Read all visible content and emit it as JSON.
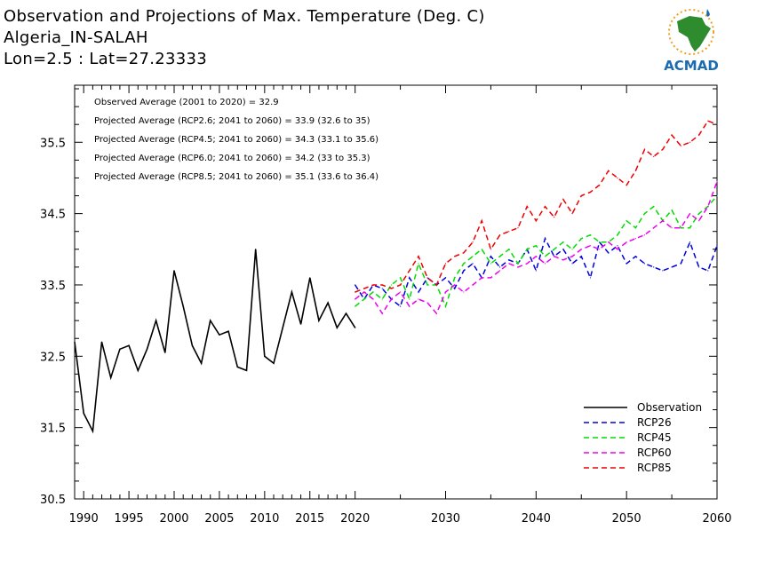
{
  "header": {
    "title_line1": "Observation and Projections of Max. Temperature (Deg. C)",
    "title_line2": "Algeria_IN-SALAH",
    "title_line3": "Lon=2.5 : Lat=27.23333"
  },
  "logo": {
    "text": "ACMAD",
    "icon": "africa-map-logo-icon",
    "color_main": "#1a6bb0",
    "color_accent": "#f0a020",
    "color_land": "#2e8b2e"
  },
  "stats": [
    "Observed Average (2001 to 2020) = 32.9",
    "Projected Average (RCP2.6; 2041 to 2060) = 33.9 (32.6 to 35)",
    "Projected Average (RCP4.5; 2041 to 2060) = 34.3 (33.1 to 35.6)",
    "Projected Average (RCP6.0; 2041 to 2060) = 34.2 (33 to 35.3)",
    "Projected Average (RCP8.5; 2041 to 2060) = 35.1 (33.6 to 36.4)"
  ],
  "chart_data": {
    "type": "line",
    "xlim": [
      1989,
      2060
    ],
    "ylim": [
      30.5,
      36.3
    ],
    "x_ticks": [
      1990,
      1995,
      2000,
      2005,
      2010,
      2015,
      2020,
      2030,
      2040,
      2050,
      2060
    ],
    "y_ticks": [
      30.5,
      31.5,
      32.5,
      33.5,
      34.5,
      35.5
    ],
    "grid": false,
    "legend_position": "bottom-right",
    "series": [
      {
        "name": "Observation",
        "color": "#000000",
        "dash": "solid",
        "x": [
          1989,
          1990,
          1991,
          1992,
          1993,
          1994,
          1995,
          1996,
          1997,
          1998,
          1999,
          2000,
          2001,
          2002,
          2003,
          2004,
          2005,
          2006,
          2007,
          2008,
          2009,
          2010,
          2011,
          2012,
          2013,
          2014,
          2015,
          2016,
          2017,
          2018,
          2019,
          2020
        ],
        "values": [
          32.7,
          31.7,
          31.45,
          32.7,
          32.2,
          32.6,
          32.65,
          32.3,
          32.6,
          33.0,
          32.55,
          33.7,
          33.2,
          32.65,
          32.4,
          33.0,
          32.8,
          32.85,
          32.35,
          32.3,
          34.0,
          32.5,
          32.4,
          32.9,
          33.4,
          32.95,
          33.6,
          33.0,
          33.25,
          32.9,
          33.1,
          32.9
        ]
      },
      {
        "name": "RCP26",
        "color": "#0000dd",
        "dash": "dashed",
        "x": [
          2020,
          2021,
          2022,
          2023,
          2024,
          2025,
          2026,
          2027,
          2028,
          2029,
          2030,
          2031,
          2032,
          2033,
          2034,
          2035,
          2036,
          2037,
          2038,
          2039,
          2040,
          2041,
          2042,
          2043,
          2044,
          2045,
          2046,
          2047,
          2048,
          2049,
          2050,
          2051,
          2052,
          2053,
          2054,
          2055,
          2056,
          2057,
          2058,
          2059,
          2060
        ],
        "values": [
          33.5,
          33.3,
          33.5,
          33.45,
          33.3,
          33.2,
          33.6,
          33.4,
          33.6,
          33.5,
          33.6,
          33.45,
          33.7,
          33.8,
          33.6,
          33.9,
          33.75,
          33.85,
          33.8,
          34.0,
          33.7,
          34.15,
          33.9,
          34.0,
          33.8,
          33.9,
          33.6,
          34.1,
          33.95,
          34.05,
          33.8,
          33.9,
          33.8,
          33.75,
          33.7,
          33.75,
          33.8,
          34.1,
          33.75,
          33.7,
          34.05
        ]
      },
      {
        "name": "RCP45",
        "color": "#00dd00",
        "dash": "dashed",
        "x": [
          2020,
          2021,
          2022,
          2023,
          2024,
          2025,
          2026,
          2027,
          2028,
          2029,
          2030,
          2031,
          2032,
          2033,
          2034,
          2035,
          2036,
          2037,
          2038,
          2039,
          2040,
          2041,
          2042,
          2043,
          2044,
          2045,
          2046,
          2047,
          2048,
          2049,
          2050,
          2051,
          2052,
          2053,
          2054,
          2055,
          2056,
          2057,
          2058,
          2059,
          2060
        ],
        "values": [
          33.2,
          33.3,
          33.4,
          33.3,
          33.5,
          33.6,
          33.3,
          33.8,
          33.5,
          33.5,
          33.2,
          33.6,
          33.8,
          33.9,
          34.0,
          33.8,
          33.9,
          34.0,
          33.8,
          34.0,
          34.05,
          33.9,
          34.0,
          34.1,
          34.0,
          34.15,
          34.2,
          34.1,
          34.1,
          34.2,
          34.4,
          34.3,
          34.5,
          34.6,
          34.4,
          34.55,
          34.3,
          34.3,
          34.5,
          34.6,
          34.75
        ]
      },
      {
        "name": "RCP60",
        "color": "#ee00ee",
        "dash": "dashed",
        "x": [
          2020,
          2021,
          2022,
          2023,
          2024,
          2025,
          2026,
          2027,
          2028,
          2029,
          2030,
          2031,
          2032,
          2033,
          2034,
          2035,
          2036,
          2037,
          2038,
          2039,
          2040,
          2041,
          2042,
          2043,
          2044,
          2045,
          2046,
          2047,
          2048,
          2049,
          2050,
          2051,
          2052,
          2053,
          2054,
          2055,
          2056,
          2057,
          2058,
          2059,
          2060
        ],
        "values": [
          33.3,
          33.4,
          33.3,
          33.1,
          33.3,
          33.4,
          33.2,
          33.3,
          33.25,
          33.1,
          33.4,
          33.5,
          33.4,
          33.5,
          33.6,
          33.6,
          33.7,
          33.8,
          33.75,
          33.8,
          33.9,
          33.8,
          33.9,
          33.85,
          33.9,
          34.0,
          34.05,
          34.0,
          34.1,
          34.0,
          34.1,
          34.15,
          34.2,
          34.3,
          34.4,
          34.3,
          34.3,
          34.5,
          34.4,
          34.6,
          34.95
        ]
      },
      {
        "name": "RCP85",
        "color": "#ee0000",
        "dash": "dashed",
        "x": [
          2020,
          2021,
          2022,
          2023,
          2024,
          2025,
          2026,
          2027,
          2028,
          2029,
          2030,
          2031,
          2032,
          2033,
          2034,
          2035,
          2036,
          2037,
          2038,
          2039,
          2040,
          2041,
          2042,
          2043,
          2044,
          2045,
          2046,
          2047,
          2048,
          2049,
          2050,
          2051,
          2052,
          2053,
          2054,
          2055,
          2056,
          2057,
          2058,
          2059,
          2060
        ],
        "values": [
          33.4,
          33.45,
          33.5,
          33.5,
          33.45,
          33.5,
          33.7,
          33.9,
          33.6,
          33.5,
          33.8,
          33.9,
          33.95,
          34.1,
          34.4,
          34.0,
          34.2,
          34.25,
          34.3,
          34.6,
          34.4,
          34.6,
          34.45,
          34.7,
          34.5,
          34.75,
          34.8,
          34.9,
          35.1,
          35.0,
          34.9,
          35.1,
          35.4,
          35.3,
          35.4,
          35.6,
          35.45,
          35.5,
          35.6,
          35.8,
          35.75
        ]
      }
    ]
  }
}
